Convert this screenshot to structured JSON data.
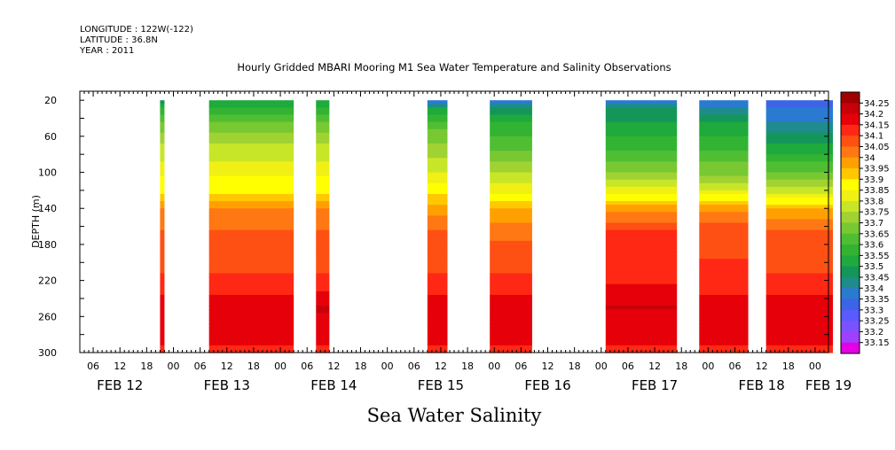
{
  "header": {
    "longitude": "LONGITUDE : 122W(-122)",
    "latitude": "LATITUDE : 36.8N",
    "year": "YEAR : 2011"
  },
  "chart_data": {
    "type": "heatmap",
    "title": "Hourly Gridded MBARI Mooring M1 Sea Water Temperature and Salinity Observations",
    "ylabel": "DEPTH (m)",
    "xlabel": "",
    "bottom_title": "Sea Water Salinity",
    "y_axis": {
      "range": [
        10,
        300
      ],
      "inverted": true,
      "ticks": [
        20,
        60,
        100,
        140,
        180,
        220,
        260,
        300
      ],
      "tick_labels": [
        "20",
        "60",
        "100",
        "140",
        "180",
        "220",
        "260",
        "300"
      ]
    },
    "x_axis": {
      "units": "hours since 2011-02-12 00:00",
      "range": [
        3,
        171
      ],
      "hour_ticks": [
        6,
        12,
        18,
        24,
        30,
        36,
        42,
        48,
        54,
        60,
        66,
        72,
        78,
        84,
        90,
        96,
        102,
        108,
        114,
        120,
        126,
        132,
        138,
        144,
        150,
        156,
        162,
        168
      ],
      "hour_tick_labels": [
        "06",
        "12",
        "18",
        "00",
        "06",
        "12",
        "18",
        "00",
        "06",
        "12",
        "18",
        "00",
        "06",
        "12",
        "18",
        "00",
        "06",
        "12",
        "18",
        "00",
        "06",
        "12",
        "18",
        "00",
        "06",
        "12",
        "18",
        "00"
      ],
      "day_labels": [
        {
          "hour": 12,
          "label": "FEB 12"
        },
        {
          "hour": 36,
          "label": "FEB 13"
        },
        {
          "hour": 60,
          "label": "FEB 14"
        },
        {
          "hour": 84,
          "label": "FEB 15"
        },
        {
          "hour": 108,
          "label": "FEB 16"
        },
        {
          "hour": 132,
          "label": "FEB 17"
        },
        {
          "hour": 156,
          "label": "FEB 18"
        },
        {
          "hour": 171,
          "label": "FEB 19"
        }
      ]
    },
    "colorbar": {
      "levels": [
        "33.15",
        "33.2",
        "33.25",
        "33.3",
        "33.35",
        "33.4",
        "33.45",
        "33.5",
        "33.55",
        "33.6",
        "33.65",
        "33.7",
        "33.75",
        "33.8",
        "33.85",
        "33.9",
        "33.95",
        "34",
        "34.05",
        "34.1",
        "34.15",
        "34.2",
        "34.25"
      ],
      "colors": [
        "#e600e6",
        "#a040ff",
        "#7b52ff",
        "#5a5aff",
        "#3c64e6",
        "#2a7ad2",
        "#1e8c8c",
        "#14965a",
        "#1eaa3c",
        "#32b432",
        "#50be32",
        "#78c832",
        "#a0d232",
        "#c8e628",
        "#f0f014",
        "#ffff00",
        "#ffc800",
        "#ffa000",
        "#ff7814",
        "#ff5014",
        "#ff2814",
        "#e6000a",
        "#c8000a",
        "#a00000"
      ]
    },
    "segments": [
      {
        "start": 21.0,
        "end": 22.0,
        "profile": [
          {
            "depth": 20,
            "value": 33.45
          },
          {
            "depth": 30,
            "value": 33.55
          },
          {
            "depth": 45,
            "value": 33.65
          },
          {
            "depth": 75,
            "value": 33.77
          },
          {
            "depth": 105,
            "value": 33.85
          },
          {
            "depth": 125,
            "value": 33.9
          },
          {
            "depth": 140,
            "value": 34.0
          },
          {
            "depth": 165,
            "value": 34.05
          },
          {
            "depth": 195,
            "value": 34.08
          },
          {
            "depth": 225,
            "value": 34.12
          },
          {
            "depth": 250,
            "value": 34.18
          },
          {
            "depth": 270,
            "value": 34.18
          },
          {
            "depth": 290,
            "value": 34.15
          },
          {
            "depth": 300,
            "value": 34.12
          }
        ]
      },
      {
        "start": 32.0,
        "end": 51.0,
        "profile": [
          {
            "depth": 20,
            "value": 33.5
          },
          {
            "depth": 30,
            "value": 33.57
          },
          {
            "depth": 45,
            "value": 33.65
          },
          {
            "depth": 75,
            "value": 33.77
          },
          {
            "depth": 105,
            "value": 33.85
          },
          {
            "depth": 125,
            "value": 33.9
          },
          {
            "depth": 140,
            "value": 34.0
          },
          {
            "depth": 165,
            "value": 34.05
          },
          {
            "depth": 195,
            "value": 34.08
          },
          {
            "depth": 225,
            "value": 34.12
          },
          {
            "depth": 250,
            "value": 34.18
          },
          {
            "depth": 270,
            "value": 34.18
          },
          {
            "depth": 290,
            "value": 34.15
          },
          {
            "depth": 300,
            "value": 34.12
          }
        ]
      },
      {
        "start": 56.0,
        "end": 59.0,
        "profile": [
          {
            "depth": 20,
            "value": 33.5
          },
          {
            "depth": 30,
            "value": 33.57
          },
          {
            "depth": 45,
            "value": 33.65
          },
          {
            "depth": 75,
            "value": 33.77
          },
          {
            "depth": 105,
            "value": 33.85
          },
          {
            "depth": 125,
            "value": 33.9
          },
          {
            "depth": 140,
            "value": 34.0
          },
          {
            "depth": 165,
            "value": 34.05
          },
          {
            "depth": 195,
            "value": 34.08
          },
          {
            "depth": 225,
            "value": 34.12
          },
          {
            "depth": 250,
            "value": 34.21
          },
          {
            "depth": 270,
            "value": 34.18
          },
          {
            "depth": 290,
            "value": 34.15
          },
          {
            "depth": 300,
            "value": 34.12
          }
        ]
      },
      {
        "start": 81.0,
        "end": 85.5,
        "profile": [
          {
            "depth": 20,
            "value": 33.35
          },
          {
            "depth": 30,
            "value": 33.5
          },
          {
            "depth": 45,
            "value": 33.62
          },
          {
            "depth": 75,
            "value": 33.72
          },
          {
            "depth": 105,
            "value": 33.82
          },
          {
            "depth": 125,
            "value": 33.9
          },
          {
            "depth": 140,
            "value": 33.98
          },
          {
            "depth": 165,
            "value": 34.05
          },
          {
            "depth": 195,
            "value": 34.08
          },
          {
            "depth": 225,
            "value": 34.12
          },
          {
            "depth": 250,
            "value": 34.18
          },
          {
            "depth": 270,
            "value": 34.18
          },
          {
            "depth": 290,
            "value": 34.15
          },
          {
            "depth": 300,
            "value": 34.12
          }
        ]
      },
      {
        "start": 95.0,
        "end": 104.5,
        "profile": [
          {
            "depth": 20,
            "value": 33.35
          },
          {
            "depth": 30,
            "value": 33.45
          },
          {
            "depth": 45,
            "value": 33.55
          },
          {
            "depth": 75,
            "value": 33.65
          },
          {
            "depth": 105,
            "value": 33.77
          },
          {
            "depth": 125,
            "value": 33.85
          },
          {
            "depth": 140,
            "value": 33.95
          },
          {
            "depth": 165,
            "value": 34.03
          },
          {
            "depth": 195,
            "value": 34.08
          },
          {
            "depth": 225,
            "value": 34.12
          },
          {
            "depth": 250,
            "value": 34.18
          },
          {
            "depth": 270,
            "value": 34.18
          },
          {
            "depth": 290,
            "value": 34.15
          },
          {
            "depth": 300,
            "value": 34.12
          }
        ]
      },
      {
        "start": 121.0,
        "end": 137.0,
        "profile": [
          {
            "depth": 20,
            "value": 33.35
          },
          {
            "depth": 30,
            "value": 33.45
          },
          {
            "depth": 45,
            "value": 33.5
          },
          {
            "depth": 75,
            "value": 33.6
          },
          {
            "depth": 105,
            "value": 33.72
          },
          {
            "depth": 125,
            "value": 33.85
          },
          {
            "depth": 140,
            "value": 33.98
          },
          {
            "depth": 165,
            "value": 34.1
          },
          {
            "depth": 195,
            "value": 34.12
          },
          {
            "depth": 225,
            "value": 34.15
          },
          {
            "depth": 250,
            "value": 34.2
          },
          {
            "depth": 270,
            "value": 34.18
          },
          {
            "depth": 290,
            "value": 34.15
          },
          {
            "depth": 300,
            "value": 34.12
          }
        ]
      },
      {
        "start": 142.0,
        "end": 153.0,
        "profile": [
          {
            "depth": 20,
            "value": 33.35
          },
          {
            "depth": 30,
            "value": 33.4
          },
          {
            "depth": 45,
            "value": 33.5
          },
          {
            "depth": 75,
            "value": 33.6
          },
          {
            "depth": 105,
            "value": 33.7
          },
          {
            "depth": 125,
            "value": 33.85
          },
          {
            "depth": 140,
            "value": 33.98
          },
          {
            "depth": 165,
            "value": 34.08
          },
          {
            "depth": 195,
            "value": 34.1
          },
          {
            "depth": 225,
            "value": 34.13
          },
          {
            "depth": 250,
            "value": 34.18
          },
          {
            "depth": 270,
            "value": 34.18
          },
          {
            "depth": 290,
            "value": 34.15
          },
          {
            "depth": 300,
            "value": 34.12
          }
        ]
      },
      {
        "start": 157.0,
        "end": 172.0,
        "profile": [
          {
            "depth": 20,
            "value": 33.32
          },
          {
            "depth": 30,
            "value": 33.35
          },
          {
            "depth": 45,
            "value": 33.4
          },
          {
            "depth": 75,
            "value": 33.52
          },
          {
            "depth": 105,
            "value": 33.68
          },
          {
            "depth": 125,
            "value": 33.8
          },
          {
            "depth": 140,
            "value": 33.95
          },
          {
            "depth": 165,
            "value": 34.05
          },
          {
            "depth": 195,
            "value": 34.08
          },
          {
            "depth": 225,
            "value": 34.12
          },
          {
            "depth": 250,
            "value": 34.18
          },
          {
            "depth": 270,
            "value": 34.18
          },
          {
            "depth": 290,
            "value": 34.15
          },
          {
            "depth": 300,
            "value": 34.12
          }
        ]
      }
    ]
  }
}
